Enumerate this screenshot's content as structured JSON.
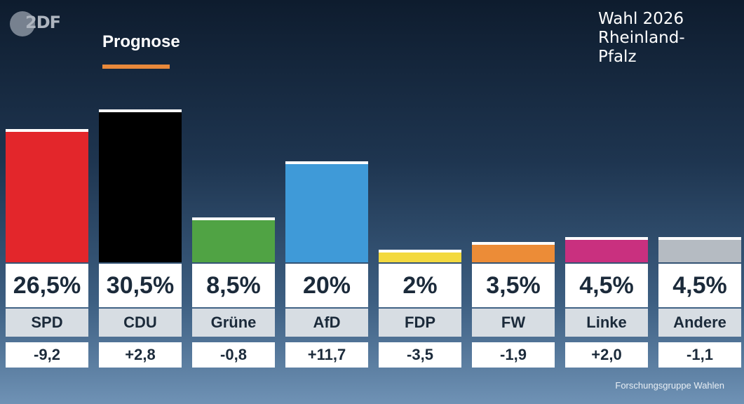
{
  "logo": "2DF",
  "subtitle": "Prognose",
  "title_lines": [
    "Wahl 2026",
    "Rheinland-",
    "Pfalz"
  ],
  "source": "Forschungsgruppe Wahlen",
  "colors": {
    "accent": "#e8893b",
    "SPD": "#e3262b",
    "CDU": "#000000",
    "Grüne": "#50a344",
    "AfD": "#3f9ad8",
    "FDP": "#f3d93f",
    "FW": "#ec8c37",
    "Linke": "#c9307f",
    "Andere": "#b5bbc2"
  },
  "chart_data": {
    "type": "bar",
    "categories": [
      "SPD",
      "CDU",
      "Grüne",
      "AfD",
      "FDP",
      "FW",
      "Linke",
      "Andere"
    ],
    "values": [
      26.5,
      30.5,
      8.5,
      20,
      2,
      3.5,
      4.5,
      4.5
    ],
    "value_labels": [
      "26,5%",
      "30,5%",
      "8,5%",
      "20%",
      "2%",
      "3,5%",
      "4,5%",
      "4,5%"
    ],
    "change_labels": [
      "-9,2",
      "+2,8",
      "-0,8",
      "+11,7",
      "-3,5",
      "-1,9",
      "+2,0",
      "-1,1"
    ],
    "changes": [
      -9.2,
      2.8,
      -0.8,
      11.7,
      -3.5,
      -1.9,
      2.0,
      -1.1
    ],
    "title": "Wahl 2026 Rheinland-Pfalz",
    "subtitle": "Prognose"
  }
}
